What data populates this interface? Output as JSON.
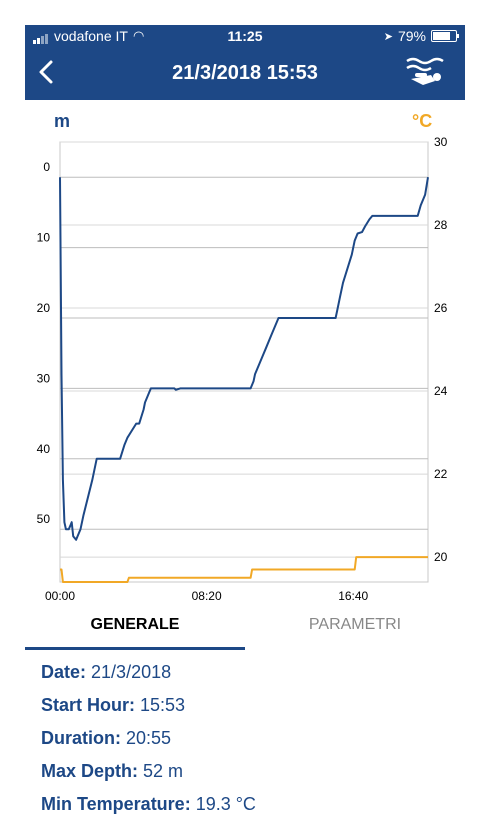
{
  "status": {
    "carrier": "vodafone IT",
    "time": "11:25",
    "battery": "79%",
    "battery_level": 0.79
  },
  "nav": {
    "title": "21/3/2018 15:53"
  },
  "units": {
    "left": "m",
    "right": "°C"
  },
  "tabs": [
    {
      "label": "GENERALE"
    },
    {
      "label": "PARAMETRI"
    }
  ],
  "info": {
    "date_label": "Date:",
    "date_value": "21/3/2018",
    "start_label": "Start Hour:",
    "start_value": "15:53",
    "duration_label": "Duration:",
    "duration_value": "20:55",
    "depth_label": "Max Depth:",
    "depth_value": "52 m",
    "temp_label": "Min Temperature:",
    "temp_value": "19.3 °C"
  },
  "colors": {
    "accent": "#1d4886",
    "temperature": "#f1a826"
  },
  "chart_data": {
    "type": "line",
    "x_ticks": [
      "00:00",
      "08:20",
      "16:40"
    ],
    "x_tick_minutes": [
      0,
      500,
      1000
    ],
    "xlim_minutes": [
      0,
      1255
    ],
    "y_left_ticks": [
      0,
      10,
      20,
      30,
      40,
      50
    ],
    "y_left_lim": [
      -5,
      57.5
    ],
    "y_right_ticks": [
      20,
      22,
      24,
      26,
      28,
      30
    ],
    "y_right_lim": [
      19.4,
      30
    ],
    "grid": true,
    "series": [
      {
        "axis": "left",
        "color": "#1d4886",
        "x": [
          0,
          5,
          10,
          15,
          20,
          30,
          35,
          40,
          45,
          55,
          70,
          80,
          95,
          110,
          125,
          140,
          155,
          175,
          205,
          220,
          230,
          260,
          270,
          285,
          290,
          305,
          310,
          320,
          325,
          340,
          350,
          360,
          380,
          390,
          395,
          410,
          470,
          510,
          550,
          650,
          660,
          665,
          680,
          695,
          700,
          720,
          745,
          760,
          830,
          855,
          890,
          940,
          945,
          955,
          965,
          980,
          995,
          1005,
          1015,
          1030,
          1040,
          1055,
          1065,
          1075,
          1085,
          1095,
          1100,
          1220,
          1230,
          1245,
          1255
        ],
        "values": [
          0,
          28,
          43,
          49,
          50,
          50,
          49.5,
          49,
          51,
          51.5,
          50,
          48,
          45.5,
          43,
          40,
          40,
          40,
          40,
          40,
          38,
          37,
          35,
          35,
          33,
          32,
          30.5,
          30,
          30,
          30,
          30,
          30,
          30,
          30,
          30,
          30.2,
          30,
          30,
          30,
          30,
          30,
          29,
          28,
          26.5,
          25,
          24.5,
          22.5,
          20,
          20,
          20,
          20,
          20,
          20,
          19,
          17,
          15,
          13,
          11,
          9,
          8,
          7.8,
          7,
          6,
          5.5,
          5.5,
          5.5,
          5.5,
          5.5,
          5.5,
          4,
          2.5,
          0
        ]
      },
      {
        "axis": "right",
        "color": "#f1a826",
        "x": [
          0,
          5,
          10,
          15,
          230,
          235,
          650,
          655,
          1005,
          1010,
          1255
        ],
        "values": [
          19.7,
          19.7,
          19.4,
          19.4,
          19.4,
          19.5,
          19.5,
          19.7,
          19.7,
          20,
          20
        ]
      }
    ]
  }
}
